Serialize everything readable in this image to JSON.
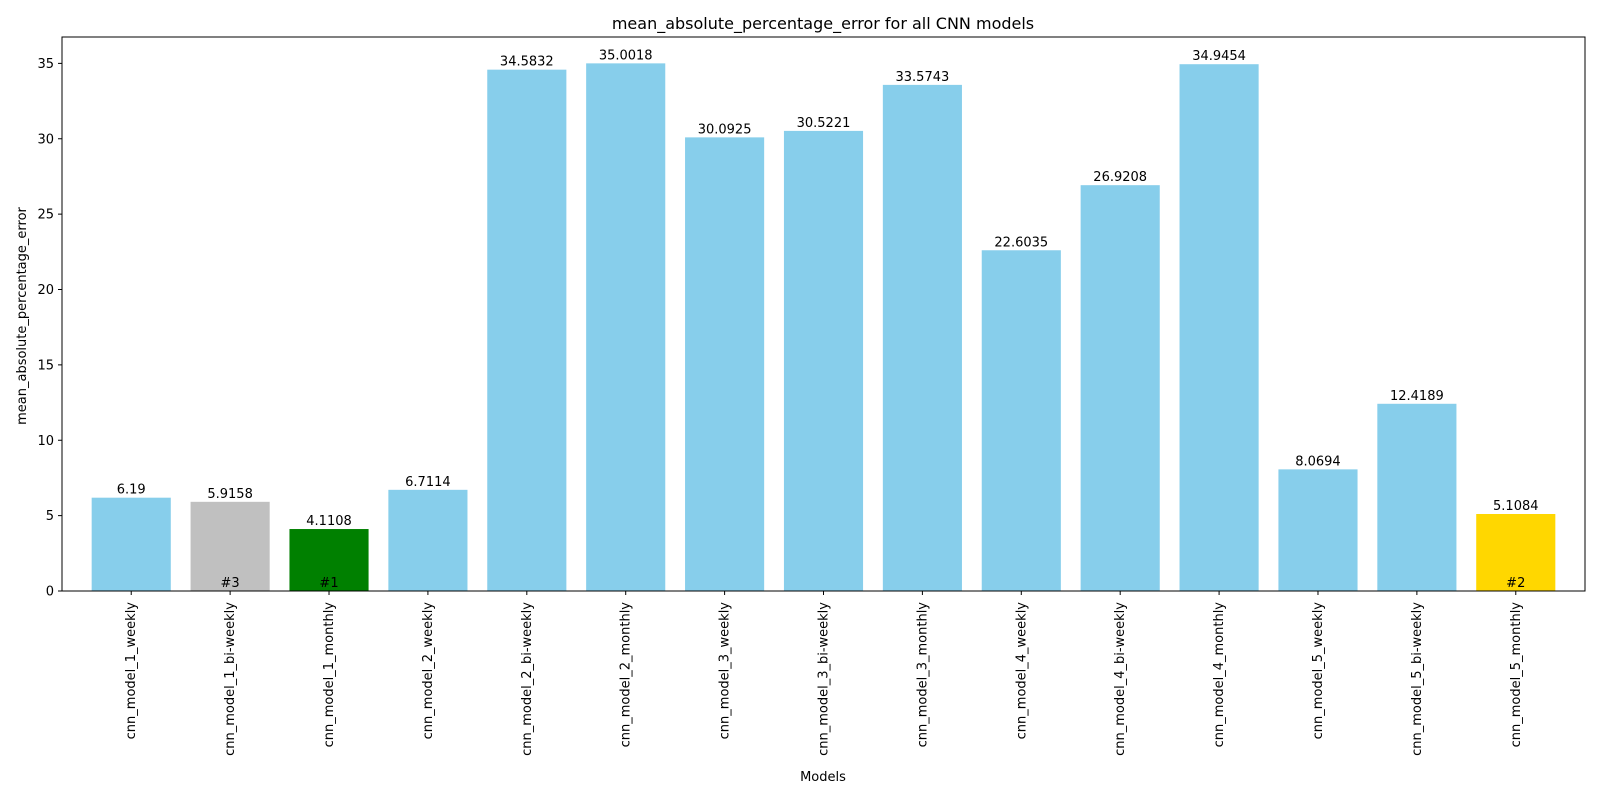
{
  "chart_data": {
    "type": "bar",
    "title": "mean_absolute_percentage_error for all CNN models",
    "xlabel": "Models",
    "ylabel": "mean_absolute_percentage_error",
    "ylim": [
      0,
      36.75
    ],
    "yticks": [
      0,
      5,
      10,
      15,
      20,
      25,
      30,
      35
    ],
    "grid": false,
    "categories": [
      "cnn_model_1_weekly",
      "cnn_model_1_bi-weekly",
      "cnn_model_1_monthly",
      "cnn_model_2_weekly",
      "cnn_model_2_bi-weekly",
      "cnn_model_2_monthly",
      "cnn_model_3_weekly",
      "cnn_model_3_bi-weekly",
      "cnn_model_3_monthly",
      "cnn_model_4_weekly",
      "cnn_model_4_bi-weekly",
      "cnn_model_4_monthly",
      "cnn_model_5_weekly",
      "cnn_model_5_bi-weekly",
      "cnn_model_5_monthly"
    ],
    "values": [
      6.19,
      5.9158,
      4.1108,
      6.7114,
      34.5832,
      35.0018,
      30.0925,
      30.5221,
      33.5743,
      22.6035,
      26.9208,
      34.9454,
      8.0694,
      12.4189,
      5.1084
    ],
    "value_labels": [
      "6.19",
      "5.9158",
      "4.1108",
      "6.7114",
      "34.5832",
      "35.0018",
      "30.0925",
      "30.5221",
      "33.5743",
      "22.6035",
      "26.9208",
      "34.9454",
      "8.0694",
      "12.4189",
      "5.1084"
    ],
    "ranks": [
      "",
      "#3",
      "#1",
      "",
      "",
      "",
      "",
      "",
      "",
      "",
      "",
      "",
      "",
      "",
      "#2"
    ],
    "colors": [
      "#87CEEB",
      "#C0C0C0",
      "#008000",
      "#87CEEB",
      "#87CEEB",
      "#87CEEB",
      "#87CEEB",
      "#87CEEB",
      "#87CEEB",
      "#87CEEB",
      "#87CEEB",
      "#87CEEB",
      "#87CEEB",
      "#87CEEB",
      "#FFD700"
    ]
  }
}
